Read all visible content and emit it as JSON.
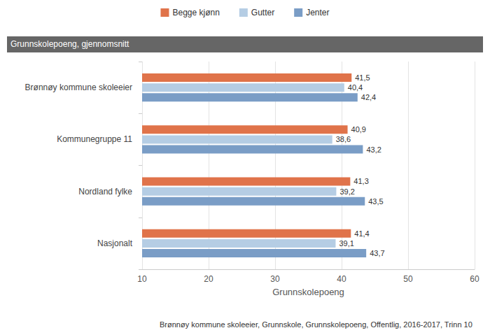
{
  "chart_data": {
    "type": "bar",
    "orientation": "horizontal",
    "title": "Grunnskolepoeng, gjennomsnitt",
    "xlabel": "Grunnskolepoeng",
    "source": "Brønnøy kommune skoleeier, Grunnskole, Grunnskolepoeng, Offentlig, 2016-2017, Trinn 10",
    "categories": [
      "Brønnøy kommune skoleeier",
      "Kommunegruppe 11",
      "Nordland fylke",
      "Nasjonalt"
    ],
    "series": [
      {
        "name": "Begge kjønn",
        "color": "#e0734a",
        "values": [
          41.5,
          40.9,
          41.3,
          41.4
        ],
        "value_labels": [
          "41,5",
          "40,9",
          "41,3",
          "41,4"
        ]
      },
      {
        "name": "Gutter",
        "color": "#b5cde4",
        "values": [
          40.4,
          38.6,
          39.2,
          39.1
        ],
        "value_labels": [
          "40,4",
          "38,6",
          "39,2",
          "39,1"
        ]
      },
      {
        "name": "Jenter",
        "color": "#7a9dc6",
        "values": [
          42.4,
          43.2,
          43.5,
          43.7
        ],
        "value_labels": [
          "42,4",
          "43,2",
          "43,5",
          "43,7"
        ]
      }
    ],
    "xlim": [
      10,
      60
    ],
    "xticks": [
      10,
      20,
      30,
      40,
      50,
      60
    ],
    "grid": true,
    "legend": "top",
    "data_labels": true
  }
}
